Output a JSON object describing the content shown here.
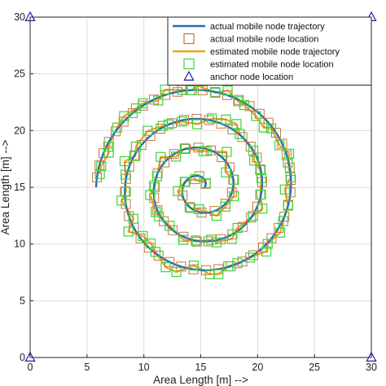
{
  "chart_data": {
    "type": "line",
    "xlabel": "Area Length [m] -->",
    "ylabel": "Area Length [m] -->",
    "xlim": [
      0,
      30
    ],
    "ylim": [
      0,
      30
    ],
    "xticks": [
      0,
      5,
      10,
      15,
      20,
      25,
      30
    ],
    "yticks": [
      0,
      5,
      10,
      15,
      20,
      25,
      30
    ],
    "grid": true,
    "legend_position": "top-right",
    "colors": {
      "actual_trajectory": "#1f6fb4",
      "actual_location": "#c8743e",
      "estimated_trajectory": "#f0a31c",
      "estimated_location": "#3ad63a",
      "anchor": "#1c1cb0"
    },
    "legend": [
      {
        "label": "actual mobile node trajectory",
        "style": "line",
        "color_key": "actual_trajectory"
      },
      {
        "label": "actual mobile node location",
        "style": "square",
        "color_key": "actual_location"
      },
      {
        "label": "estimated mobile node trajectory",
        "style": "line",
        "color_key": "estimated_trajectory"
      },
      {
        "label": "estimated mobile node location",
        "style": "square",
        "color_key": "estimated_location"
      },
      {
        "label": "anchor node location",
        "style": "triangle",
        "color_key": "anchor"
      }
    ],
    "spiral": {
      "center": [
        15,
        15
      ],
      "r_start": 0.3,
      "r_end": 9.2,
      "turns": 3.5,
      "start_angle_deg": 0
    },
    "anchors": [
      {
        "x": 0,
        "y": 0
      },
      {
        "x": 30,
        "y": 0
      },
      {
        "x": 0,
        "y": 30
      },
      {
        "x": 30,
        "y": 30
      }
    ]
  }
}
